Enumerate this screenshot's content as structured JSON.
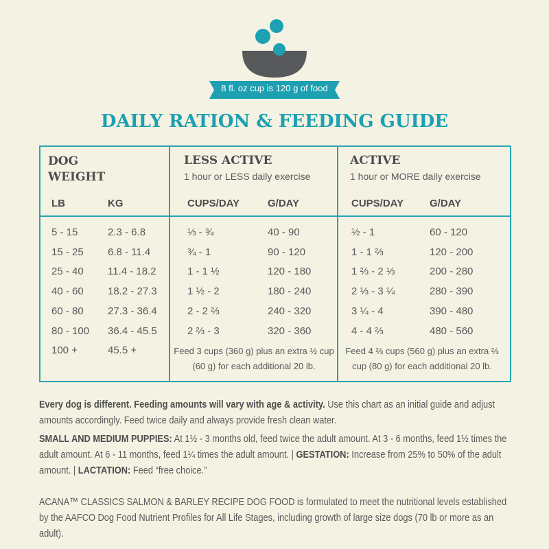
{
  "badge": "8 fl. oz cup is 120 g of food",
  "title": "DAILY RATION & FEEDING GUIDE",
  "table": {
    "weight_heading": "DOG WEIGHT",
    "less_active": {
      "title": "LESS ACTIVE",
      "subtitle": "1 hour or LESS daily exercise"
    },
    "active": {
      "title": "ACTIVE",
      "subtitle": "1 hour or MORE daily exercise"
    },
    "columns": [
      "LB",
      "KG",
      "CUPS/DAY",
      "G/DAY",
      "CUPS/DAY",
      "G/DAY"
    ],
    "rows": [
      [
        "5 - 15",
        "2.3 - 6.8",
        "⅓ - ¾",
        "40 - 90",
        "½ - 1",
        "60 - 120"
      ],
      [
        "15 - 25",
        "6.8 - 11.4",
        "¾ - 1",
        "90 - 120",
        "1 - 1 ⅔",
        "120 - 200"
      ],
      [
        "25 - 40",
        "11.4 - 18.2",
        "1 - 1 ½",
        "120 - 180",
        "1 ⅔ - 2 ⅓",
        "200 - 280"
      ],
      [
        "40 - 60",
        "18.2 - 27.3",
        "1 ½ - 2",
        "180 - 240",
        "2 ⅓ - 3 ¼",
        "280 - 390"
      ],
      [
        "60 - 80",
        "27.3 - 36.4",
        "2 - 2 ⅔",
        "240 - 320",
        "3 ¼ - 4",
        "390 - 480"
      ],
      [
        "80 - 100",
        "36.4 - 45.5",
        "2 ⅔ - 3",
        "320 - 360",
        "4 - 4 ⅔",
        "480 - 560"
      ],
      [
        "100 +",
        "45.5 +"
      ]
    ],
    "notes": [
      "Feed 3 cups (360 g) plus an extra ½ cup (60 g) for each additional 20 lb.",
      "Feed 4 ⅔ cups (560 g) plus an extra ⅔ cup (80 g) for each additional 20 lb."
    ]
  },
  "footer": {
    "paragraphs": [
      [
        {
          "text": "Every dog is different. Feeding amounts will vary with age & activity.",
          "bold": true
        },
        {
          "text": " Use this chart as an initial guide and adjust amounts accordingly. Feed twice daily and always provide fresh clean water.",
          "bold": false
        }
      ],
      [
        {
          "text": "SMALL AND MEDIUM PUPPIES:",
          "bold": true
        },
        {
          "text": " At 1½ - 3 months old, feed twice the adult amount. At 3 - 6 months, feed 1½ times the adult amount. At 6 - 11 months, feed 1¼ times the adult amount. | ",
          "bold": false
        },
        {
          "text": "GESTATION:",
          "bold": true
        },
        {
          "text": " Increase from 25% to 50% of the adult amount. | ",
          "bold": false
        },
        {
          "text": "LACTATION:",
          "bold": true
        },
        {
          "text": " Feed “free choice.”",
          "bold": false
        }
      ],
      [
        {
          "text": "ACANA™ CLASSICS SALMON & BARLEY RECIPE DOG FOOD is formulated to meet the nutritional levels established by the AAFCO Dog Food Nutrient Profiles for All Life Stages, including growth of large size dogs (70 lb or more as an adult).",
          "bold": false
        }
      ]
    ]
  }
}
